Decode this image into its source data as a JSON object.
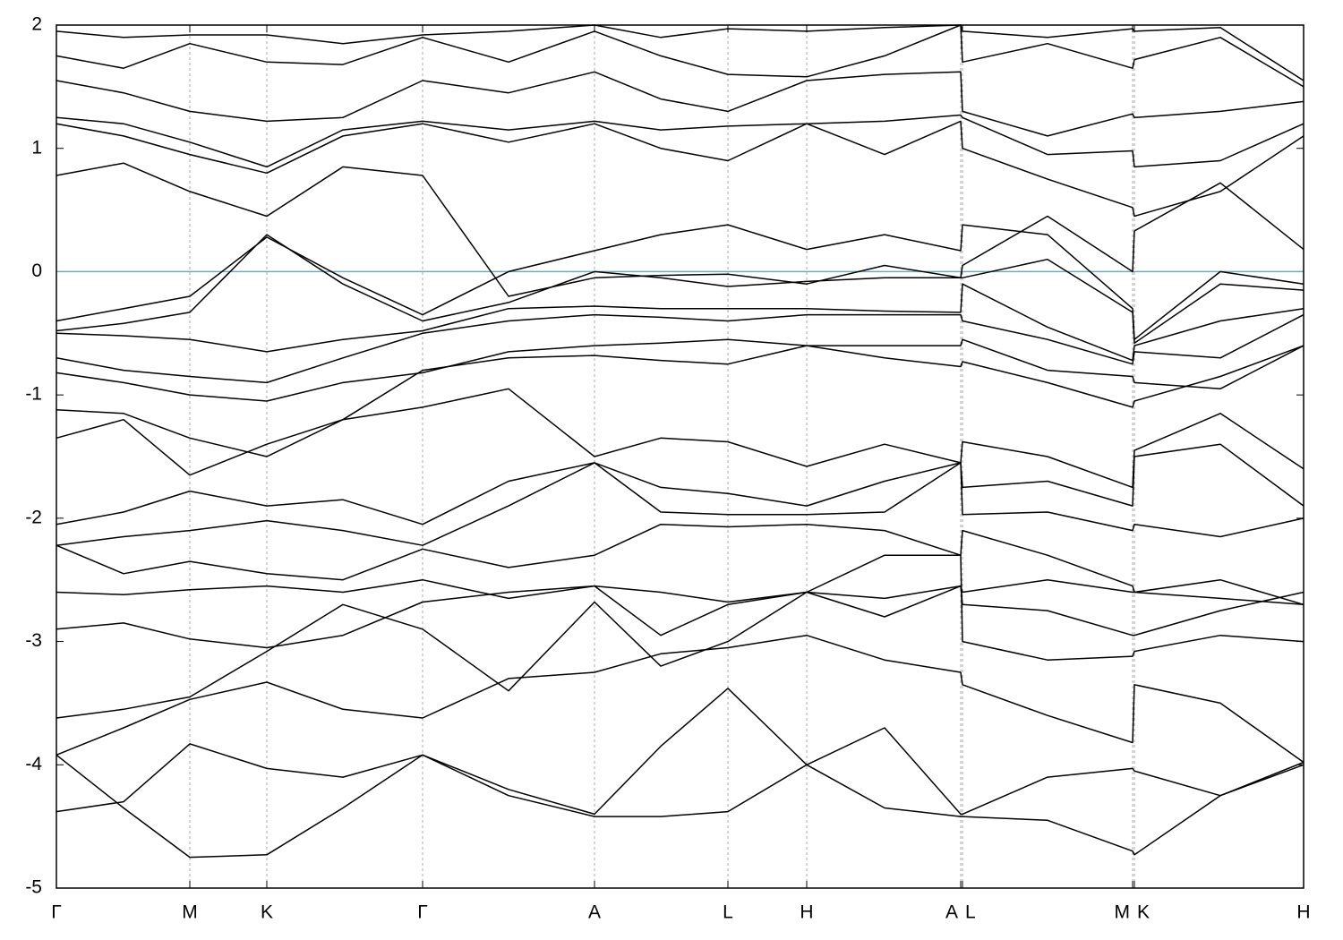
{
  "chart_data": {
    "type": "line",
    "x": [
      0,
      0.75,
      1.49,
      2.35,
      3.2,
      4.09,
      5.05,
      6.01,
      6.75,
      7.5,
      8.38,
      9.25,
      10.1,
      10.12,
      11.07,
      12.02,
      12.04,
      13.0,
      13.93
    ],
    "xlim": [
      0,
      13.93
    ],
    "xticks": [
      {
        "value": 0,
        "label": "Γ"
      },
      {
        "value": 1.49,
        "label": "M"
      },
      {
        "value": 2.35,
        "label": "K"
      },
      {
        "value": 4.09,
        "label": "Γ"
      },
      {
        "value": 6.01,
        "label": "A"
      },
      {
        "value": 7.5,
        "label": "L"
      },
      {
        "value": 8.38,
        "label": "H"
      },
      {
        "value": 10.1,
        "label": "A"
      },
      {
        "value": 10.12,
        "label": "L"
      },
      {
        "value": 12.02,
        "label": "M"
      },
      {
        "value": 12.04,
        "label": "K"
      },
      {
        "value": 13.93,
        "label": "H"
      }
    ],
    "ylim": [
      -5,
      2
    ],
    "yticks": [
      2,
      1,
      0,
      -1,
      -2,
      -3,
      -4,
      -5
    ],
    "color": "#000000",
    "reference_line": {
      "value": 0,
      "color": "#5ab4c9"
    },
    "series": [
      {
        "values": [
          -3.92,
          -4.35,
          -4.75,
          -4.73,
          -4.35,
          -3.92,
          -4.25,
          -4.42,
          -4.42,
          -4.38,
          -4.0,
          -4.35,
          -4.42,
          -4.42,
          -4.45,
          -4.7,
          -4.73,
          -4.25,
          -4.0
        ]
      },
      {
        "values": [
          -4.38,
          -4.3,
          -3.83,
          -4.03,
          -4.1,
          -3.92,
          -4.2,
          -4.4,
          -3.85,
          -3.38,
          -4.0,
          -3.7,
          -4.4,
          -4.4,
          -4.1,
          -4.03,
          -4.05,
          -4.25,
          -3.98
        ]
      },
      {
        "values": [
          -3.92,
          -3.7,
          -3.47,
          -3.33,
          -3.55,
          -3.62,
          -3.3,
          -3.25,
          -3.1,
          -3.05,
          -2.95,
          -3.15,
          -3.25,
          -3.35,
          -3.6,
          -3.82,
          -3.35,
          -3.5,
          -3.98
        ]
      },
      {
        "values": [
          -3.62,
          -3.55,
          -3.45,
          -3.08,
          -2.7,
          -2.9,
          -3.4,
          -2.68,
          -3.2,
          -3.0,
          -2.6,
          -2.3,
          -2.3,
          -3.0,
          -3.15,
          -3.12,
          -3.08,
          -2.95,
          -3.0
        ]
      },
      {
        "values": [
          -2.9,
          -2.85,
          -2.98,
          -3.05,
          -2.95,
          -2.68,
          -2.6,
          -2.55,
          -2.95,
          -2.7,
          -2.6,
          -2.8,
          -2.55,
          -2.7,
          -2.75,
          -2.95,
          -2.95,
          -2.75,
          -2.6
        ]
      },
      {
        "values": [
          -2.6,
          -2.62,
          -2.58,
          -2.55,
          -2.6,
          -2.5,
          -2.65,
          -2.55,
          -2.6,
          -2.68,
          -2.6,
          -2.65,
          -2.55,
          -2.6,
          -2.5,
          -2.6,
          -2.6,
          -2.65,
          -2.7
        ]
      },
      {
        "values": [
          -2.22,
          -2.45,
          -2.35,
          -2.45,
          -2.5,
          -2.25,
          -2.4,
          -2.3,
          -2.05,
          -2.07,
          -2.05,
          -2.1,
          -2.3,
          -2.1,
          -2.3,
          -2.55,
          -2.6,
          -2.5,
          -2.7
        ]
      },
      {
        "values": [
          -2.22,
          -2.15,
          -2.1,
          -2.02,
          -2.1,
          -2.22,
          -1.9,
          -1.55,
          -1.95,
          -1.97,
          -1.97,
          -1.95,
          -1.55,
          -1.97,
          -1.95,
          -2.1,
          -2.05,
          -2.15,
          -2.0
        ]
      },
      {
        "values": [
          -2.05,
          -1.95,
          -1.78,
          -1.9,
          -1.85,
          -2.05,
          -1.7,
          -1.55,
          -1.75,
          -1.8,
          -1.9,
          -1.7,
          -1.55,
          -1.75,
          -1.7,
          -1.9,
          -1.5,
          -1.4,
          -1.9
        ]
      },
      {
        "values": [
          -1.35,
          -1.2,
          -1.65,
          -1.4,
          -1.2,
          -1.1,
          -0.95,
          -1.5,
          -1.35,
          -1.38,
          -1.58,
          -1.4,
          -1.55,
          -1.38,
          -1.5,
          -1.75,
          -1.45,
          -1.15,
          -1.6
        ]
      },
      {
        "values": [
          -1.12,
          -1.15,
          -1.35,
          -1.5,
          -1.2,
          -0.8,
          -0.7,
          -0.68,
          -0.72,
          -0.75,
          -0.6,
          -0.7,
          -0.77,
          -0.73,
          -0.9,
          -1.1,
          -1.05,
          -0.85,
          -0.6
        ]
      },
      {
        "values": [
          -0.82,
          -0.9,
          -1.0,
          -1.05,
          -0.9,
          -0.82,
          -0.65,
          -0.6,
          -0.58,
          -0.55,
          -0.6,
          -0.6,
          -0.6,
          -0.55,
          -0.8,
          -0.85,
          -0.9,
          -0.95,
          -0.6
        ]
      },
      {
        "values": [
          -0.7,
          -0.8,
          -0.85,
          -0.9,
          -0.7,
          -0.5,
          -0.4,
          -0.35,
          -0.37,
          -0.4,
          -0.35,
          -0.35,
          -0.35,
          -0.4,
          -0.55,
          -0.75,
          -0.65,
          -0.7,
          -0.35
        ]
      },
      {
        "values": [
          -0.5,
          -0.52,
          -0.55,
          -0.65,
          -0.55,
          -0.48,
          -0.3,
          -0.28,
          -0.3,
          -0.3,
          -0.3,
          -0.32,
          -0.33,
          -0.1,
          -0.45,
          -0.72,
          -0.6,
          -0.4,
          -0.3
        ]
      },
      {
        "values": [
          -0.48,
          -0.42,
          -0.33,
          0.3,
          -0.1,
          -0.4,
          -0.25,
          0.0,
          -0.05,
          -0.12,
          -0.08,
          -0.05,
          -0.05,
          -0.05,
          0.1,
          -0.33,
          -0.58,
          -0.1,
          -0.15
        ]
      },
      {
        "values": [
          -0.4,
          -0.3,
          -0.2,
          0.28,
          -0.05,
          -0.35,
          0.0,
          0.17,
          0.3,
          0.38,
          0.18,
          0.3,
          0.17,
          0.38,
          0.3,
          -0.3,
          -0.55,
          0.0,
          -0.1
        ]
      },
      {
        "values": [
          0.78,
          0.88,
          0.65,
          0.45,
          0.85,
          0.78,
          -0.2,
          -0.05,
          -0.03,
          -0.02,
          -0.1,
          0.05,
          -0.05,
          0.05,
          0.45,
          0.0,
          0.33,
          0.72,
          0.18
        ]
      },
      {
        "values": [
          1.2,
          1.1,
          0.95,
          0.8,
          1.1,
          1.2,
          1.05,
          1.2,
          1.0,
          0.9,
          1.2,
          0.95,
          1.22,
          1.0,
          0.75,
          0.52,
          0.45,
          0.65,
          1.1
        ]
      },
      {
        "values": [
          1.25,
          1.2,
          1.05,
          0.85,
          1.15,
          1.22,
          1.15,
          1.22,
          1.15,
          1.18,
          1.2,
          1.22,
          1.27,
          1.25,
          0.95,
          0.98,
          0.85,
          0.9,
          1.2
        ]
      },
      {
        "values": [
          1.55,
          1.45,
          1.3,
          1.22,
          1.25,
          1.55,
          1.45,
          1.62,
          1.4,
          1.3,
          1.55,
          1.6,
          1.62,
          1.3,
          1.1,
          1.28,
          1.25,
          1.3,
          1.38
        ]
      },
      {
        "values": [
          1.75,
          1.65,
          1.85,
          1.7,
          1.68,
          1.9,
          1.7,
          1.95,
          1.75,
          1.6,
          1.58,
          1.75,
          2.0,
          1.7,
          1.85,
          1.65,
          1.72,
          1.9,
          1.5
        ]
      },
      {
        "values": [
          1.95,
          1.9,
          1.92,
          1.92,
          1.85,
          1.92,
          1.95,
          2.0,
          1.9,
          1.97,
          1.95,
          1.98,
          2.0,
          1.95,
          1.9,
          1.97,
          1.95,
          1.98,
          1.55
        ]
      }
    ]
  }
}
